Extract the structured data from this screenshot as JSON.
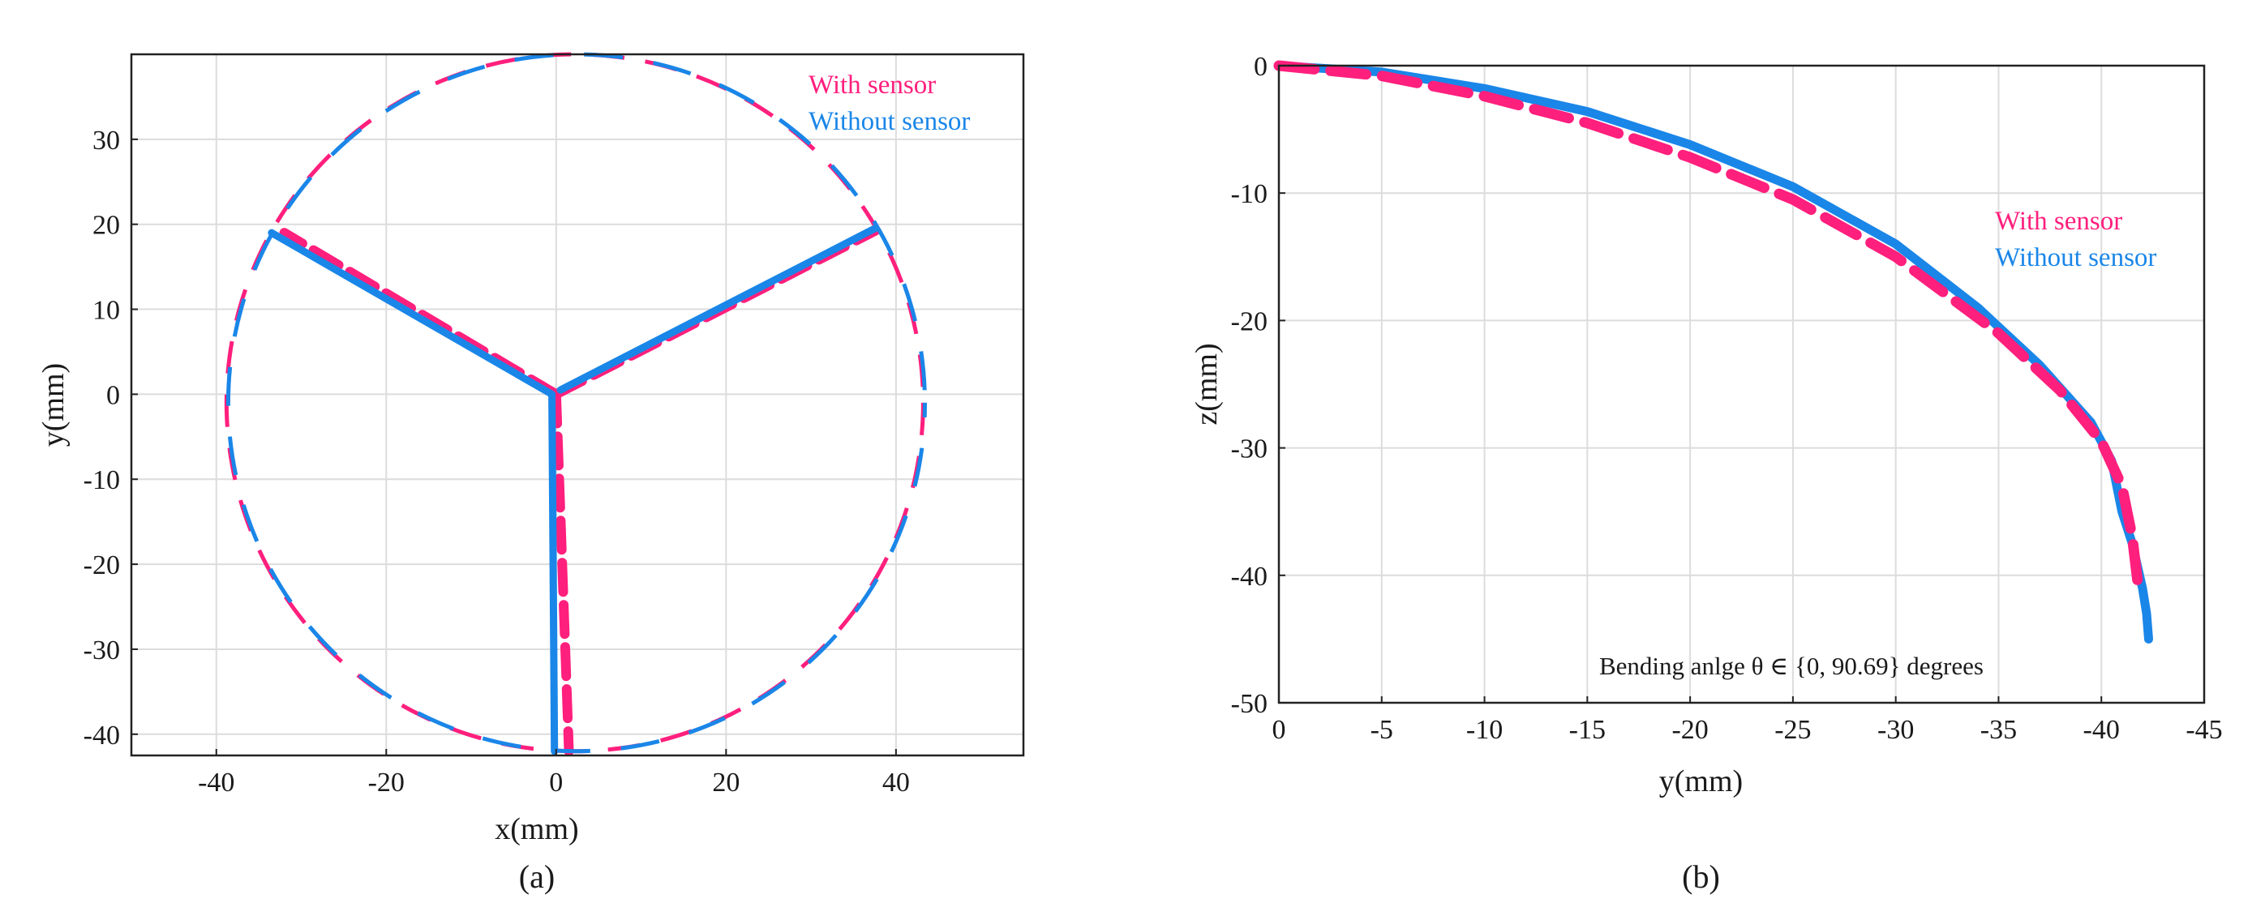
{
  "colors": {
    "with_sensor": "#ff1f7d",
    "without_sensor": "#1a86e8"
  },
  "chart_data": [
    {
      "type": "line",
      "caption": "(a)",
      "xlabel": "x(mm)",
      "ylabel": "y(mm)",
      "xlim": [
        -50,
        55
      ],
      "ylim": [
        -42.5,
        40
      ],
      "xticks": [
        -40,
        -20,
        0,
        20,
        40
      ],
      "yticks": [
        -40,
        -30,
        -20,
        -10,
        0,
        10,
        20,
        30
      ],
      "grid": true,
      "legend": {
        "placement": "top-right",
        "entries": [
          "With sensor",
          "Without sensor"
        ]
      },
      "series": [
        {
          "name": "With sensor",
          "style": "dashed-thick",
          "circle": {
            "center": [
              2.2,
              -1
            ],
            "radius": 41
          },
          "arms": [
            [
              [
                0,
                0
              ],
              [
                -32,
                19
              ]
            ],
            [
              [
                0,
                0
              ],
              [
                37.5,
                19.2
              ]
            ],
            [
              [
                0,
                0
              ],
              [
                1.5,
                -42
              ]
            ]
          ]
        },
        {
          "name": "Without sensor",
          "style": "solid-thick",
          "circle": {
            "center": [
              2.4,
              -1
            ],
            "radius": 41
          },
          "arms": [
            [
              [
                -0.5,
                0
              ],
              [
                -33.5,
                19
              ]
            ],
            [
              [
                0.5,
                0.5
              ],
              [
                37.5,
                19.5
              ]
            ],
            [
              [
                -0.5,
                0
              ],
              [
                -0.2,
                -42
              ]
            ]
          ]
        }
      ]
    },
    {
      "type": "line",
      "caption": "(b)",
      "xlabel": "y(mm)",
      "ylabel": "z(mm)",
      "xlim": [
        0,
        -45
      ],
      "ylim": [
        -50,
        0
      ],
      "xticks": [
        0,
        -5,
        -10,
        -15,
        -20,
        -25,
        -30,
        -35,
        -40,
        -45
      ],
      "yticks": [
        0,
        -10,
        -20,
        -30,
        -40,
        -50
      ],
      "grid": true,
      "legend": {
        "placement": "middle-right",
        "entries": [
          "With sensor",
          "Without sensor"
        ]
      },
      "annotation": "Bending anlge θ ∈ {0, 90.69} degrees",
      "series": [
        {
          "name": "With sensor",
          "style": "dashed-thick",
          "x": [
            0,
            -5,
            -10,
            -15,
            -20,
            -25,
            -30,
            -35,
            -38,
            -40,
            -41,
            -41.5,
            -41.8
          ],
          "y": [
            0,
            -0.8,
            -2.4,
            -4.5,
            -7.2,
            -10.5,
            -15,
            -21,
            -25.5,
            -29.5,
            -33,
            -37,
            -41
          ]
        },
        {
          "name": "Without sensor",
          "style": "solid-thick",
          "x": [
            0,
            -5,
            -10,
            -15,
            -20,
            -25,
            -30,
            -34,
            -37,
            -39.5,
            -40.5,
            -41,
            -41.5,
            -42,
            -42.2,
            -42.3
          ],
          "y": [
            0,
            -0.5,
            -1.8,
            -3.6,
            -6.2,
            -9.5,
            -14,
            -19,
            -23.5,
            -28,
            -31,
            -35,
            -37.5,
            -41,
            -43,
            -45
          ]
        }
      ]
    }
  ]
}
